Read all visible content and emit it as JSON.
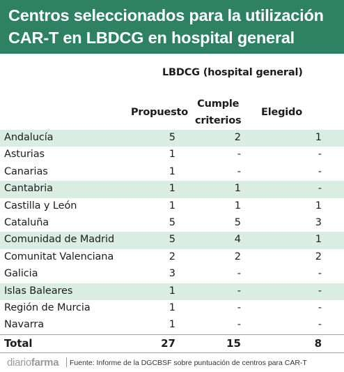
{
  "title": {
    "line1": "Centros seleccionados para la utilización",
    "line2": "CAR-T en LBDCG en hospital general"
  },
  "group_header": "LBDCG (hospital general)",
  "columns": {
    "propuesto": "Propuesto",
    "cumple_line1": "Cumple",
    "cumple_line2": "criterios",
    "elegido": "Elegido"
  },
  "rows": [
    {
      "region": "Andalucía",
      "propuesto": "5",
      "cumple": "2",
      "elegido": "1"
    },
    {
      "region": "Asturias",
      "propuesto": "1",
      "cumple": "-",
      "elegido": "-"
    },
    {
      "region": "Canarias",
      "propuesto": "1",
      "cumple": "-",
      "elegido": "-"
    },
    {
      "region": "Cantabria",
      "propuesto": "1",
      "cumple": "1",
      "elegido": "-"
    },
    {
      "region": "Castilla y León",
      "propuesto": "1",
      "cumple": "1",
      "elegido": "1"
    },
    {
      "region": "Cataluña",
      "propuesto": "5",
      "cumple": "5",
      "elegido": "3"
    },
    {
      "region": "Comunidad de Madrid",
      "propuesto": "5",
      "cumple": "4",
      "elegido": "1"
    },
    {
      "region": "Comunitat Valenciana",
      "propuesto": "2",
      "cumple": "2",
      "elegido": "2"
    },
    {
      "region": "Galicia",
      "propuesto": "3",
      "cumple": "-",
      "elegido": "-"
    },
    {
      "region": "Islas Baleares",
      "propuesto": "1",
      "cumple": "-",
      "elegido": "-"
    },
    {
      "region": "Región de Murcia",
      "propuesto": "1",
      "cumple": "-",
      "elegido": "-"
    },
    {
      "region": "Navarra",
      "propuesto": "1",
      "cumple": "-",
      "elegido": "-"
    }
  ],
  "total": {
    "label": "Total",
    "propuesto": "27",
    "cumple": "15",
    "elegido": "8"
  },
  "footer": {
    "brand_light": "diario",
    "brand_bold": "farma",
    "source": "Fuente: Informe de la DGCBSF sobre puntuación de centros para CAR-T"
  },
  "colors": {
    "header_bg": "#2e8263",
    "row_shade": "#d9ede3"
  }
}
